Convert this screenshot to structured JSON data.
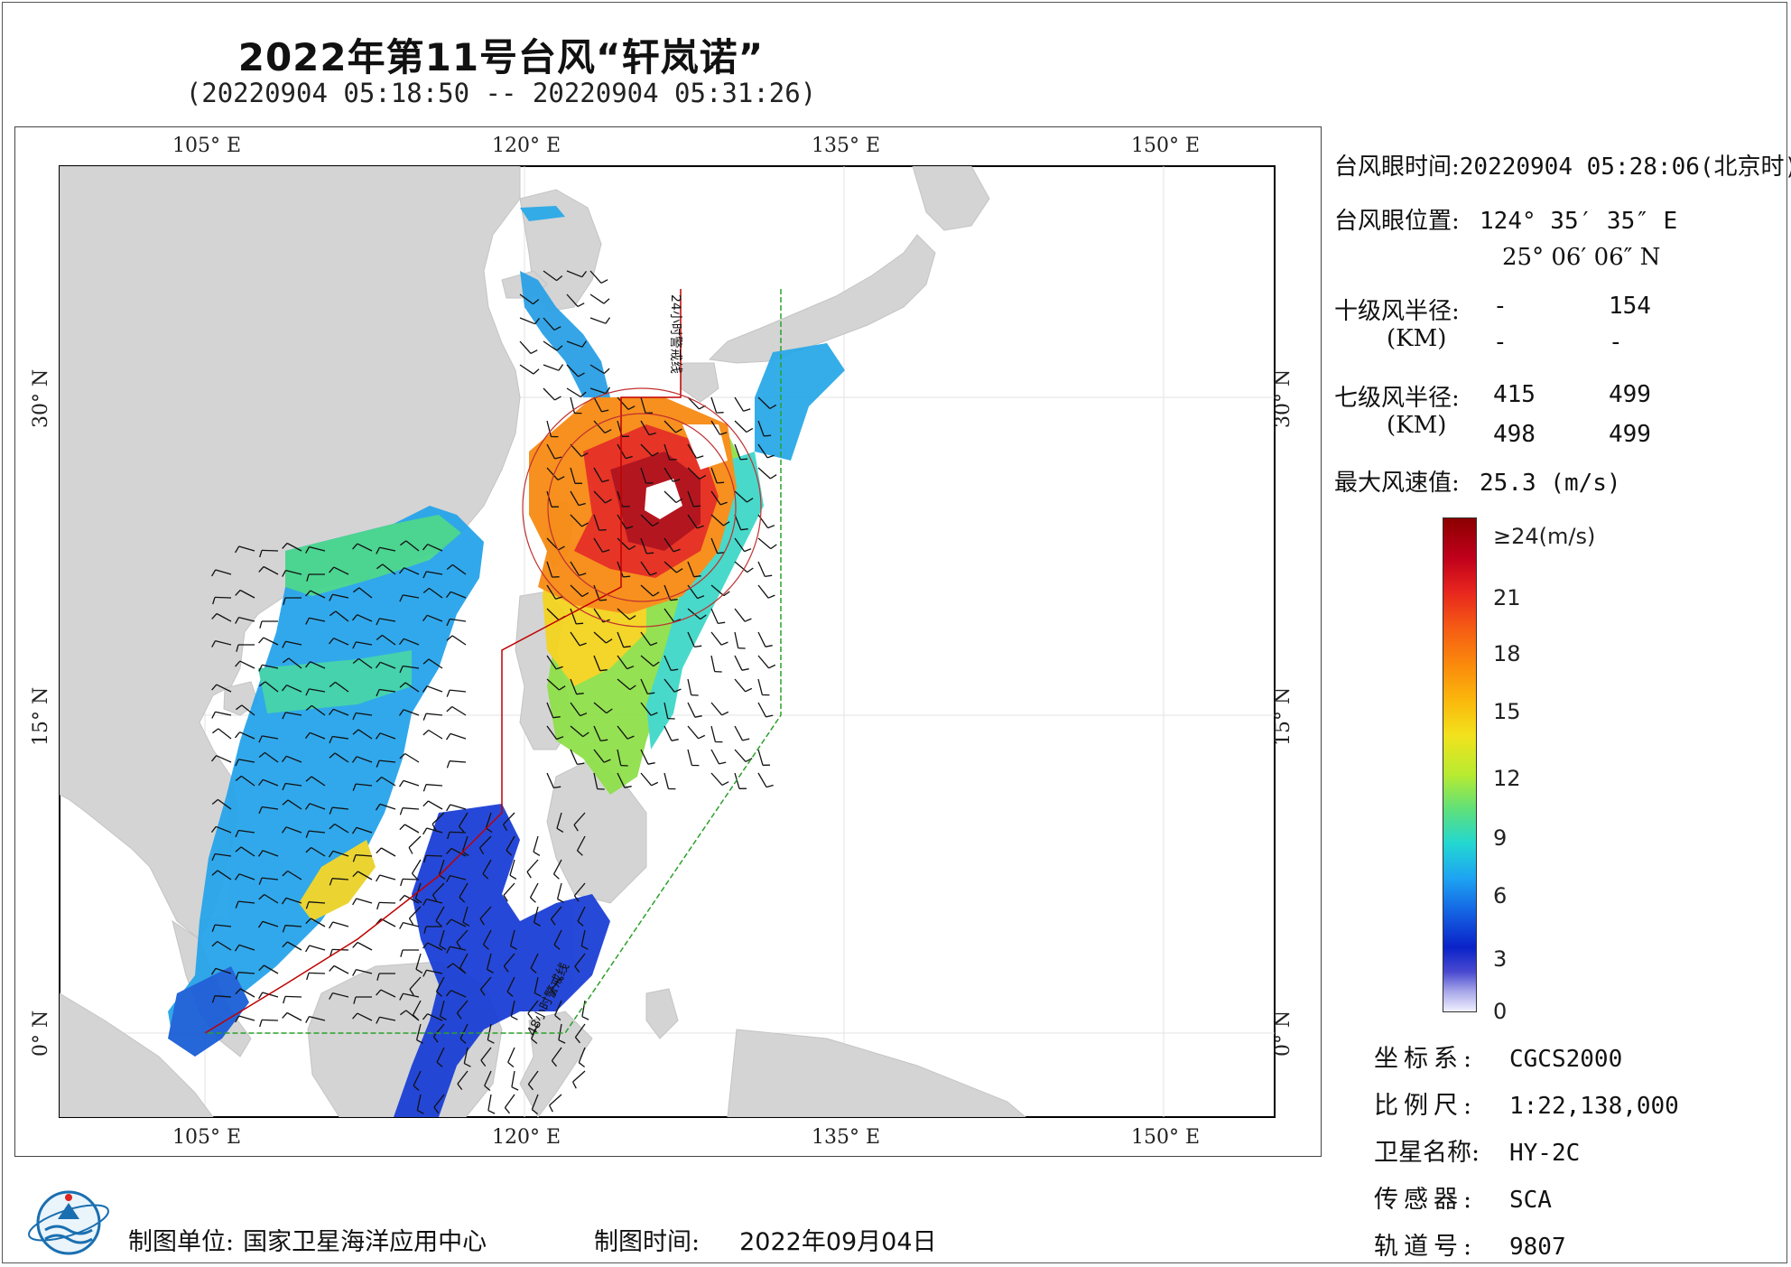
{
  "title": "2022年第11号台风“轩岚诺”",
  "subtitle": "(20220904 05:18:50 -- 20220904 05:31:26)",
  "map": {
    "lon_labels": [
      "105° E",
      "120° E",
      "135° E",
      "150° E"
    ],
    "lat_labels": [
      "30° N",
      "15° N",
      "0° N"
    ],
    "warning_line_24h": "24小时警戒线",
    "warning_line_48h": "48小时警戒线",
    "colors": {
      "land": "#d4d4d4",
      "sea": "#ffffff",
      "warning_24h": "#c00000",
      "warning_48h": "#2da02d"
    }
  },
  "info": {
    "eye_time_label": "台风眼时间:",
    "eye_time_value": "20220904 05:28:06(北京时)",
    "eye_pos_label": "台风眼位置:",
    "eye_lon": "124° 35′ 35″ E",
    "eye_lat": "25° 06′ 06″ N",
    "r10_label": "十级风半径:",
    "r10_unit": "(KM)",
    "r10_values": [
      "-",
      "154",
      "-",
      "-"
    ],
    "r7_label": "七级风半径:",
    "r7_unit": "(KM)",
    "r7_values": [
      "415",
      "499",
      "498",
      "499"
    ],
    "max_wind_label": "最大风速值:",
    "max_wind_value": "25.3 (m/s)"
  },
  "legend": {
    "labels": [
      "≥24(m/s)",
      "21",
      "18",
      "15",
      "12",
      "9",
      "6",
      "3",
      "0"
    ]
  },
  "meta": {
    "crs_label": "坐标系:",
    "crs_value": "CGCS2000",
    "scale_label": "比例尺:",
    "scale_value": "1:22,138,000",
    "satellite_label": "卫星名称:",
    "satellite_value": "HY-2C",
    "sensor_label": "传感器:",
    "sensor_value": "SCA",
    "orbit_label": "轨道号:",
    "orbit_value": "9807"
  },
  "footer": {
    "unit_label": "制图单位:",
    "unit_value": "国家卫星海洋应用中心",
    "time_label": "制图时间:",
    "time_value": "2022年09月04日"
  }
}
